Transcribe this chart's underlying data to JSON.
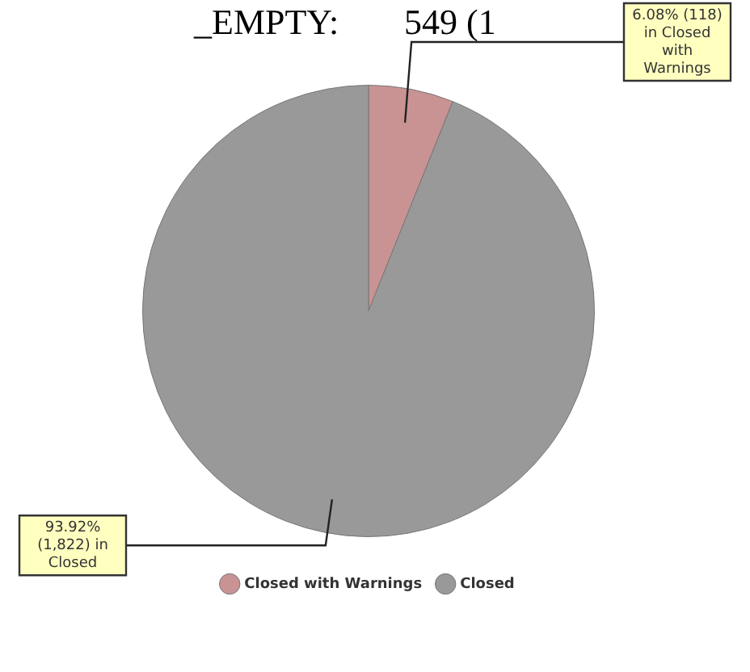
{
  "chart_data": {
    "type": "pie",
    "categories": [
      "Closed with Warnings",
      "Closed"
    ],
    "values": [
      118,
      1822
    ],
    "colors": [
      "#c99393",
      "#999999"
    ],
    "value_labels": [
      "6.08% (118) in Closed with Warnings",
      "93.92% (1,822) in Closed"
    ],
    "annotations": [
      "_EMPTY:",
      "549 (1"
    ],
    "legend": "bottom"
  }
}
